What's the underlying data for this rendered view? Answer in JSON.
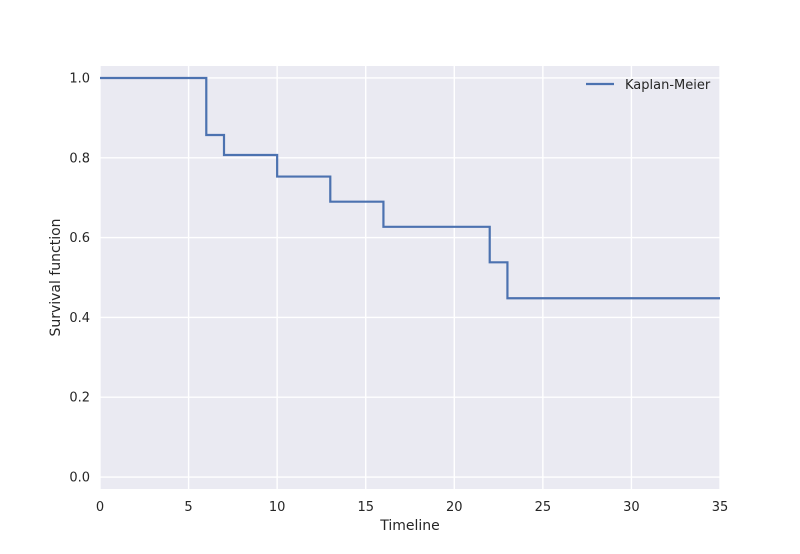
{
  "chart_data": {
    "type": "line",
    "title": "",
    "xlabel": "Timeline",
    "ylabel": "Survival function",
    "xlim": [
      0,
      35
    ],
    "ylim": [
      -0.03,
      1.03
    ],
    "xticks": [
      0,
      5,
      10,
      15,
      20,
      25,
      30,
      35
    ],
    "yticks": [
      0.0,
      0.2,
      0.4,
      0.6,
      0.8,
      1.0
    ],
    "xtick_labels": [
      "0",
      "5",
      "10",
      "15",
      "20",
      "25",
      "30",
      "35"
    ],
    "ytick_labels": [
      "0.0",
      "0.2",
      "0.4",
      "0.6",
      "0.8",
      "1.0"
    ],
    "grid": true,
    "legend_position": "top-right",
    "series": [
      {
        "name": "Kaplan-Meier",
        "color": "#4c72b0",
        "step": "post",
        "x": [
          0,
          6,
          7,
          10,
          13,
          16,
          22,
          23,
          35
        ],
        "y": [
          1.0,
          0.857,
          0.807,
          0.753,
          0.69,
          0.627,
          0.538,
          0.448,
          0.448
        ]
      }
    ],
    "background_color": "#eaeaf2",
    "grid_color": "#ffffff"
  }
}
